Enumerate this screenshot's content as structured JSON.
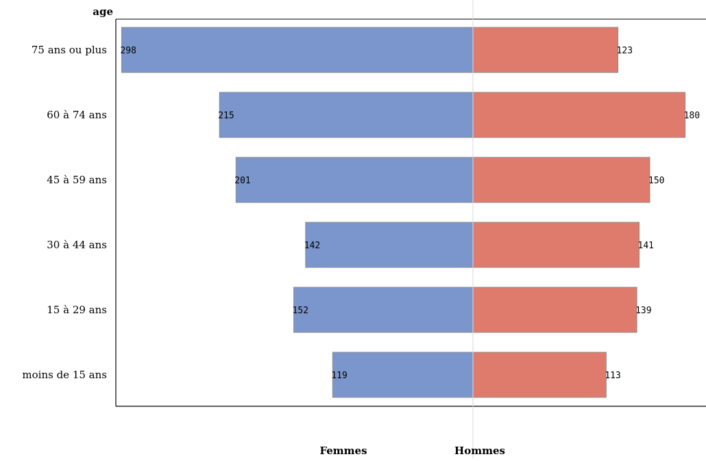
{
  "chart_data": {
    "type": "bar",
    "orientation": "horizontal",
    "ylabel": "age",
    "categories": [
      "75 ans ou plus",
      "60 à 74 ans",
      "45 à 59 ans",
      "30 à 44 ans",
      "15 à 29 ans",
      "moins de 15 ans"
    ],
    "series": [
      {
        "name": "Femmes",
        "values": [
          298,
          215,
          201,
          142,
          152,
          119
        ],
        "color": "#7b96cc",
        "side": "left"
      },
      {
        "name": "Hommes",
        "values": [
          123,
          180,
          150,
          141,
          139,
          113
        ],
        "color": "#df7b6c",
        "side": "right"
      }
    ],
    "bar_edge_color": "#8c8c8c",
    "center_line_color": "#d9d9d9",
    "frame_color": "#000000",
    "grid": false,
    "legend": "none"
  }
}
